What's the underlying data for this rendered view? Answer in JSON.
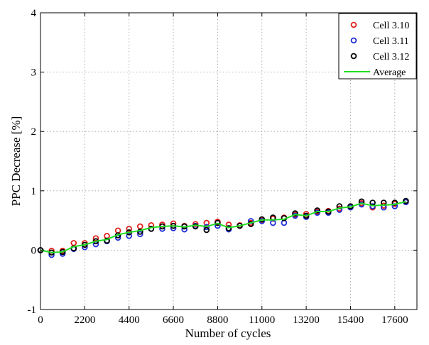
{
  "chart_data": {
    "type": "scatter",
    "title": "",
    "xlabel": "Number of cycles",
    "ylabel": "PPC Decrease [%]",
    "xlim": [
      0,
      18700
    ],
    "ylim": [
      -1,
      4
    ],
    "xticks": [
      0,
      2200,
      4400,
      6600,
      8800,
      11000,
      13200,
      15400,
      17600
    ],
    "yticks": [
      -1,
      0,
      1,
      2,
      3,
      4
    ],
    "grid": true,
    "legend_position": "top-right",
    "series": [
      {
        "name": "Cell 3.10",
        "kind": "markers",
        "color": "#e3201b",
        "x": [
          0,
          550,
          1100,
          1650,
          2200,
          2750,
          3300,
          3850,
          4400,
          4950,
          5500,
          6050,
          6600,
          7150,
          7700,
          8250,
          8800,
          9350,
          9900,
          10450,
          11000,
          11550,
          12100,
          12650,
          13200,
          13750,
          14300,
          14850,
          15400,
          15950,
          16500,
          17050,
          17600,
          18150
        ],
        "y": [
          0.0,
          -0.01,
          -0.01,
          0.12,
          0.12,
          0.2,
          0.24,
          0.33,
          0.36,
          0.4,
          0.42,
          0.43,
          0.45,
          0.41,
          0.44,
          0.46,
          0.48,
          0.43,
          0.42,
          0.46,
          0.51,
          0.53,
          0.55,
          0.6,
          0.61,
          0.65,
          0.66,
          0.7,
          0.73,
          0.79,
          0.72,
          0.75,
          0.78,
          0.81
        ]
      },
      {
        "name": "Cell 3.11",
        "kind": "markers",
        "color": "#1f2fd6",
        "x": [
          0,
          550,
          1100,
          1650,
          2200,
          2750,
          3300,
          3850,
          4400,
          4950,
          5500,
          6050,
          6600,
          7150,
          7700,
          8250,
          8800,
          9350,
          9900,
          10450,
          11000,
          11550,
          12100,
          12650,
          13200,
          13750,
          14300,
          14850,
          15400,
          15950,
          16500,
          17050,
          17600,
          18150
        ],
        "y": [
          0.0,
          -0.08,
          -0.06,
          0.02,
          0.05,
          0.1,
          0.15,
          0.21,
          0.24,
          0.27,
          0.36,
          0.36,
          0.37,
          0.35,
          0.41,
          0.39,
          0.41,
          0.35,
          0.41,
          0.49,
          0.49,
          0.46,
          0.46,
          0.58,
          0.56,
          0.63,
          0.63,
          0.68,
          0.72,
          0.77,
          0.74,
          0.72,
          0.74,
          0.81
        ]
      },
      {
        "name": "Cell 3.12",
        "kind": "markers",
        "color": "#000000",
        "x": [
          0,
          550,
          1100,
          1650,
          2200,
          2750,
          3300,
          3850,
          4400,
          4950,
          5500,
          6050,
          6600,
          7150,
          7700,
          8250,
          8800,
          9350,
          9900,
          10450,
          11000,
          11550,
          12100,
          12650,
          13200,
          13750,
          14300,
          14850,
          15400,
          15950,
          16500,
          17050,
          17600,
          18150
        ],
        "y": [
          0.0,
          -0.04,
          -0.03,
          0.03,
          0.09,
          0.15,
          0.16,
          0.25,
          0.3,
          0.31,
          0.36,
          0.4,
          0.41,
          0.4,
          0.4,
          0.34,
          0.46,
          0.37,
          0.41,
          0.44,
          0.52,
          0.55,
          0.54,
          0.62,
          0.58,
          0.67,
          0.65,
          0.74,
          0.74,
          0.82,
          0.8,
          0.8,
          0.8,
          0.83
        ]
      },
      {
        "name": "Average",
        "kind": "line",
        "color": "#22dd22",
        "x": [
          0,
          550,
          1100,
          1650,
          2200,
          2750,
          3300,
          3850,
          4400,
          4950,
          5500,
          6050,
          6600,
          7150,
          7700,
          8250,
          8800,
          9350,
          9900,
          10450,
          11000,
          11550,
          12100,
          12650,
          13200,
          13750,
          14300,
          14850,
          15400,
          15950,
          16500,
          17050,
          17600,
          18150
        ],
        "y": [
          0.0,
          -0.04,
          -0.03,
          0.06,
          0.09,
          0.15,
          0.18,
          0.26,
          0.3,
          0.33,
          0.38,
          0.4,
          0.41,
          0.39,
          0.42,
          0.4,
          0.45,
          0.38,
          0.41,
          0.46,
          0.51,
          0.51,
          0.52,
          0.6,
          0.58,
          0.65,
          0.65,
          0.71,
          0.73,
          0.79,
          0.75,
          0.76,
          0.77,
          0.82
        ]
      }
    ]
  }
}
